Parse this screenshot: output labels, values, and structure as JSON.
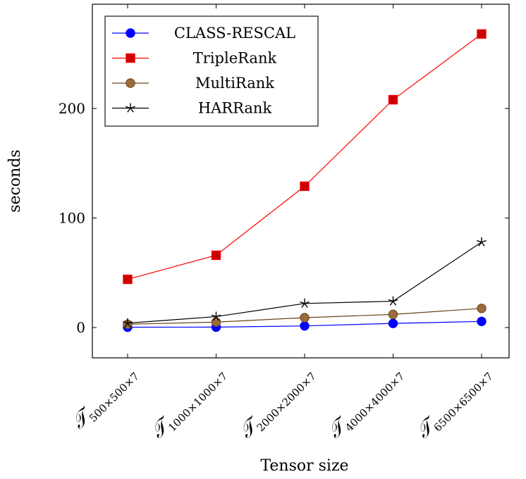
{
  "chart_data": {
    "type": "line",
    "xlabel": "Tensor size",
    "ylabel": "seconds",
    "ylim": [
      -27,
      295
    ],
    "yticks": [
      0,
      100,
      200
    ],
    "categories": [
      {
        "sym": "𝒯",
        "sub": "500×500×7"
      },
      {
        "sym": "𝒯",
        "sub": "1000×1000×7"
      },
      {
        "sym": "𝒯",
        "sub": "2000×2000×7"
      },
      {
        "sym": "𝒯",
        "sub": "4000×4000×7"
      },
      {
        "sym": "𝒯",
        "sub": "6500×6500×7"
      }
    ],
    "legend_position": "top-left",
    "series": [
      {
        "name": "CLASS-RESCAL",
        "color": "#0000ff",
        "fill": "#0000ff",
        "marker": "circle",
        "values": [
          0.3,
          0.4,
          1.5,
          3.8,
          5.6
        ]
      },
      {
        "name": "TripleRank",
        "color": "#ff0000",
        "fill": "#cc0000",
        "marker": "square",
        "values": [
          44,
          66,
          129,
          208,
          268
        ]
      },
      {
        "name": "MultiRank",
        "color": "#6b4419",
        "fill": "#9c6b3c",
        "marker": "circle",
        "values": [
          3,
          5,
          9,
          12,
          17.5
        ]
      },
      {
        "name": "HARRank",
        "color": "#000000",
        "fill": "#000000",
        "marker": "star",
        "values": [
          4,
          10,
          22,
          24,
          78
        ]
      }
    ]
  }
}
